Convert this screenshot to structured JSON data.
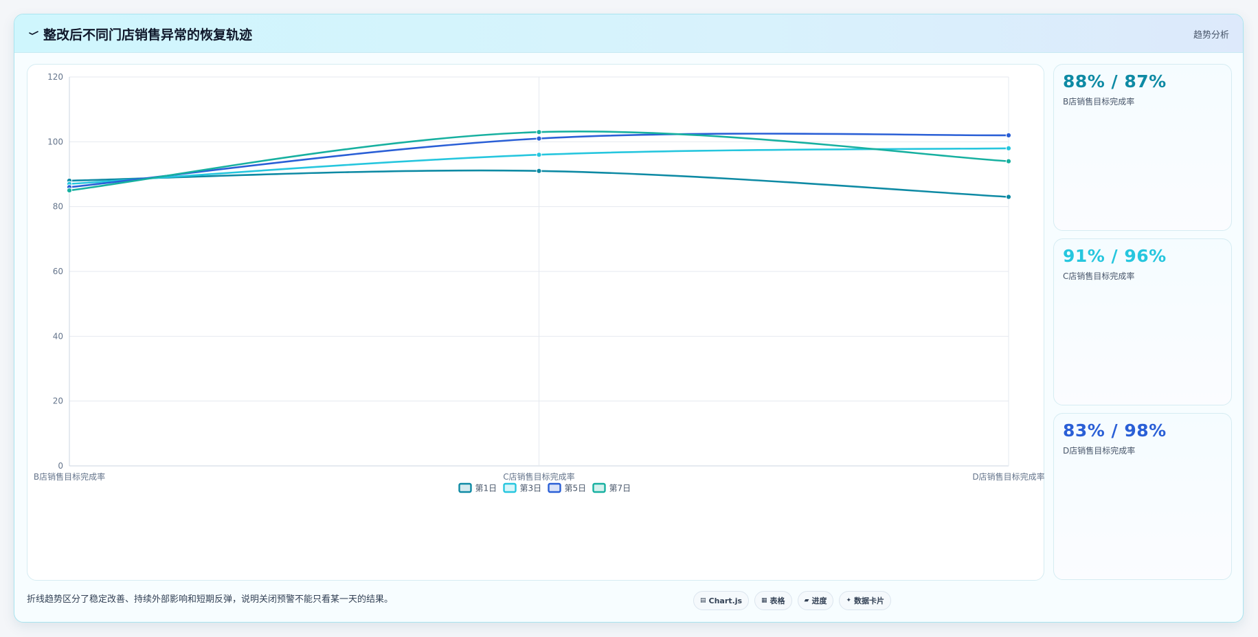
{
  "header": {
    "title": "整改后不同门店销售异常的恢复轨迹",
    "tag": "趋势分析"
  },
  "stats": [
    {
      "value": "88% / 87%",
      "label": "B店销售目标完成率",
      "color": "#0e8aa4"
    },
    {
      "value": "91% / 96%",
      "label": "C店销售目标完成率",
      "color": "#26c6de"
    },
    {
      "value": "83% / 98%",
      "label": "D店销售目标完成率",
      "color": "#2a5fd6"
    }
  ],
  "footnote": "折线趋势区分了稳定改善、持续外部影响和短期反弹，说明关闭预警不能只看某一天的结果。",
  "tags": [
    {
      "icon": "chart-icon",
      "glyph": "▤",
      "label": "Chart.js"
    },
    {
      "icon": "table-icon",
      "glyph": "▦",
      "label": "表格"
    },
    {
      "icon": "progress-icon",
      "glyph": "▰",
      "label": "进度"
    },
    {
      "icon": "data-card-icon",
      "glyph": "✦",
      "label": "数据卡片"
    }
  ],
  "chart_data": {
    "type": "line",
    "categories": [
      "B店销售目标完成率",
      "C店销售目标完成率",
      "D店销售目标完成率"
    ],
    "series": [
      {
        "name": "第1日",
        "values": [
          88,
          91,
          83
        ],
        "color": "#0e8aa4"
      },
      {
        "name": "第3日",
        "values": [
          87,
          96,
          98
        ],
        "color": "#26c6de"
      },
      {
        "name": "第5日",
        "values": [
          86,
          101,
          102
        ],
        "color": "#2a5fd6"
      },
      {
        "name": "第7日",
        "values": [
          85,
          103,
          94
        ],
        "color": "#17b0a0"
      }
    ],
    "yticks": [
      "0",
      "20",
      "40",
      "60",
      "80",
      "100",
      "120"
    ],
    "ylim": [
      0,
      120
    ],
    "grid": true,
    "legend": "bottom",
    "title": "",
    "xlabel": "",
    "ylabel": ""
  }
}
